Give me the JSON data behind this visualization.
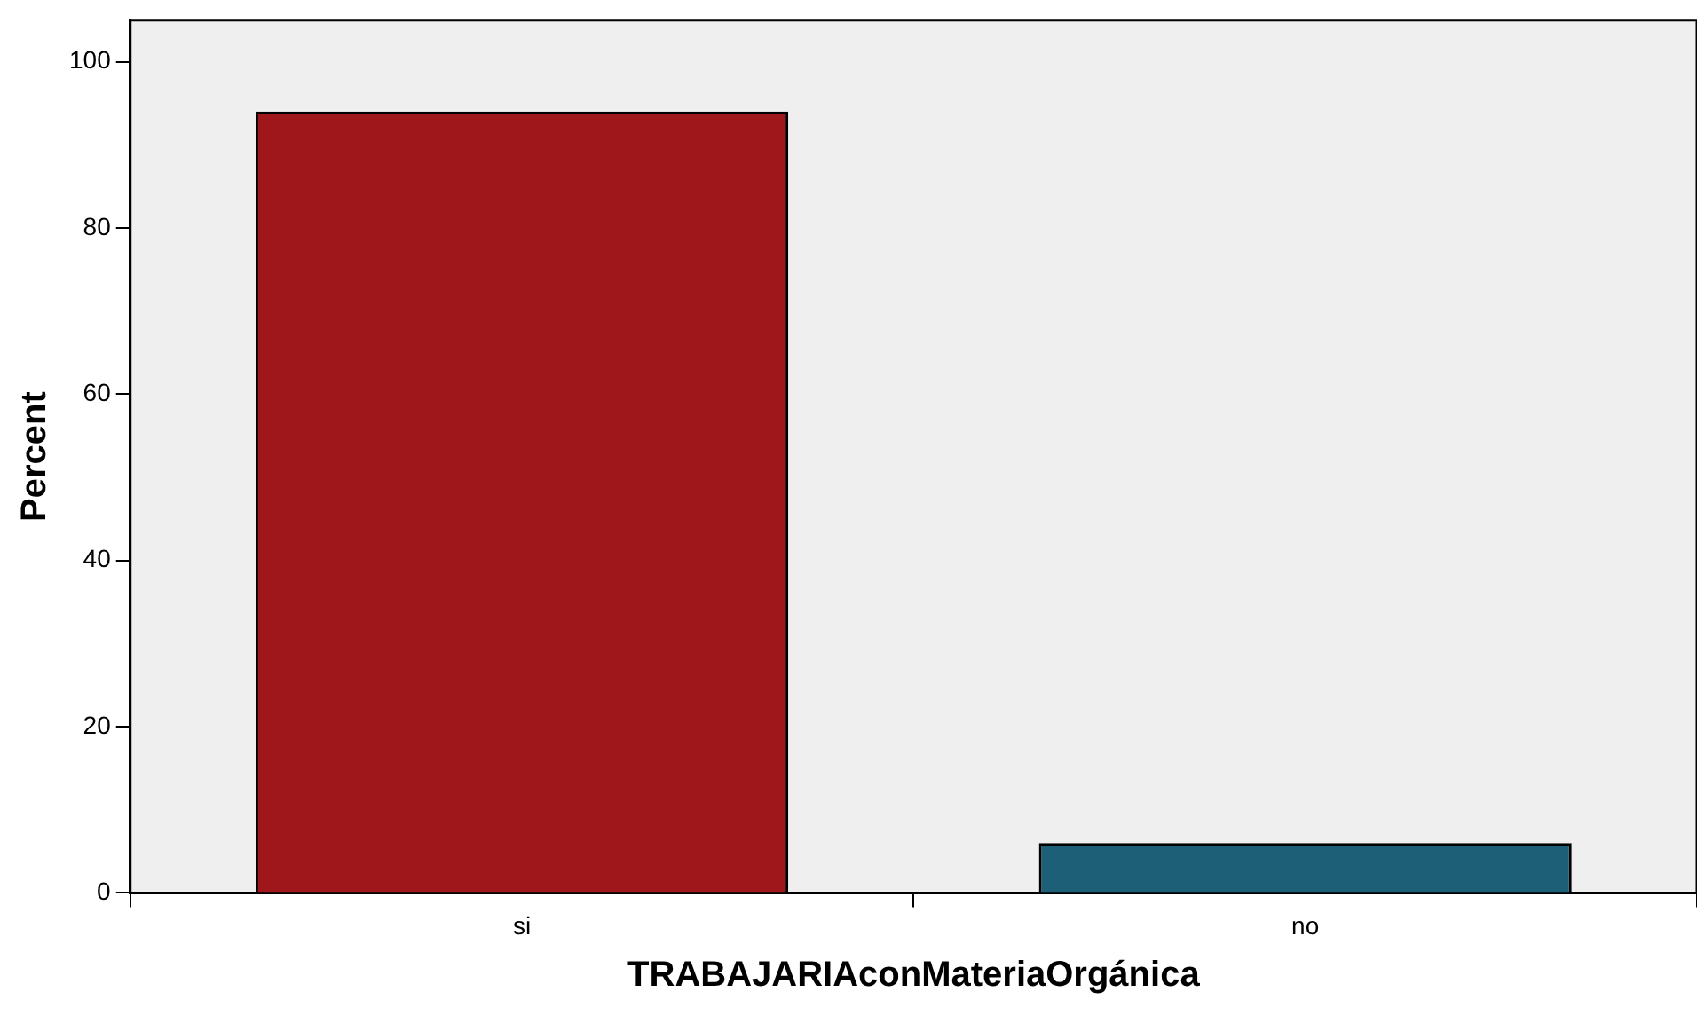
{
  "chart_data": {
    "type": "bar",
    "xlabel": "TRABAJARIAconMateriaOrgánica",
    "ylabel": "Percent",
    "categories": [
      "si",
      "no"
    ],
    "values": [
      94,
      6
    ],
    "colors": [
      "#a0171b",
      "#1d5f77"
    ],
    "ylim": [
      0,
      105
    ],
    "yticks": [
      0,
      20,
      40,
      60,
      80,
      100
    ],
    "grid": false,
    "legend": false
  }
}
